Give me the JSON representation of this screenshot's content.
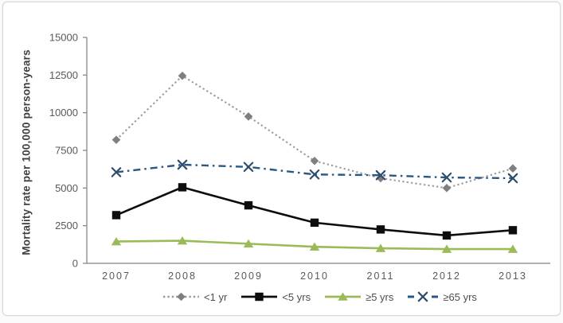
{
  "figure": {
    "background_color": "#ffffff",
    "border_color": "#d9d9d9",
    "axis_line_color": "#808080",
    "tick_label_color": "#595959",
    "axis_title_color": "#3f3f3f"
  },
  "chart_data": {
    "type": "line",
    "title": "",
    "xlabel": "",
    "ylabel": "Mortality rate per 100,000 person-years",
    "x": [
      "2007",
      "2008",
      "2009",
      "2010",
      "2011",
      "2012",
      "2013"
    ],
    "ylim": [
      0,
      15000
    ],
    "yticks": [
      0,
      2500,
      5000,
      7500,
      10000,
      12500,
      15000
    ],
    "grid": false,
    "legend_position": "bottom",
    "series": [
      {
        "name": "<1 yr",
        "values": [
          8200,
          12450,
          9750,
          6800,
          5650,
          5000,
          6300
        ],
        "line_color": "#9a9a9a",
        "marker_color": "#7f7f7f",
        "line_style": "dotted",
        "marker": "diamond"
      },
      {
        "name": "<5 yrs",
        "values": [
          3200,
          5050,
          3850,
          2700,
          2250,
          1850,
          2200
        ],
        "line_color": "#0d0d0d",
        "marker_color": "#0d0d0d",
        "line_style": "solid",
        "marker": "square"
      },
      {
        "name": "≥5 yrs",
        "values": [
          1450,
          1500,
          1300,
          1100,
          1000,
          950,
          950
        ],
        "line_color": "#9bbb59",
        "marker_color": "#9bbb59",
        "line_style": "solid",
        "marker": "triangle"
      },
      {
        "name": "≥65 yrs",
        "values": [
          6050,
          6550,
          6400,
          5900,
          5850,
          5700,
          5650
        ],
        "line_color": "#2a5783",
        "marker_color": "#2e4d6b",
        "line_style": "dashdot",
        "marker": "x"
      }
    ]
  }
}
